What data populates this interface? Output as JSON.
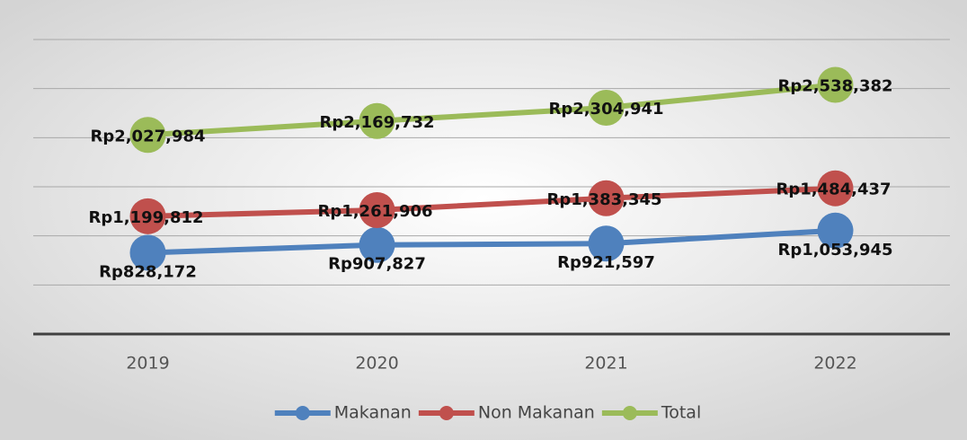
{
  "chart_data": {
    "type": "line",
    "categories": [
      "2019",
      "2020",
      "2021",
      "2022"
    ],
    "series": [
      {
        "name": "Makanan",
        "color": "#4f81bd",
        "values": [
          828172,
          907827,
          921597,
          1053945
        ],
        "value_labels": [
          "Rp828,172",
          "Rp907,827",
          "Rp921,597",
          "Rp1,053,945"
        ]
      },
      {
        "name": "Non Makanan",
        "color": "#c0504d",
        "values": [
          1199812,
          1261906,
          1383345,
          1484437
        ],
        "value_labels": [
          "Rp1,199,812",
          "Rp1,261,906",
          "Rp1,383,345",
          "Rp1,484,437"
        ]
      },
      {
        "name": "Total",
        "color": "#9bbb59",
        "values": [
          2027984,
          2169732,
          2304941,
          2538382
        ],
        "value_labels": [
          "Rp2,027,984",
          "Rp2,169,732",
          "Rp2,304,941",
          "Rp2,538,382"
        ]
      }
    ],
    "ylim": [
      0,
      3000000
    ],
    "yticks": [
      0,
      500000,
      1000000,
      1500000,
      2000000,
      2500000,
      3000000
    ],
    "grid": true,
    "legend": "bottom"
  }
}
